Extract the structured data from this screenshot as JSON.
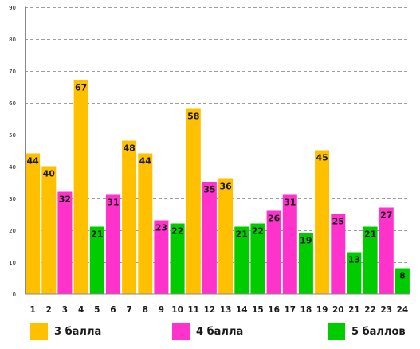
{
  "chart_data": {
    "type": "bar",
    "categories": [
      "1",
      "2",
      "3",
      "4",
      "5",
      "6",
      "7",
      "8",
      "9",
      "10",
      "11",
      "12",
      "13",
      "14",
      "15",
      "16",
      "17",
      "18",
      "19",
      "20",
      "21",
      "22",
      "23",
      "24"
    ],
    "values": [
      44,
      40,
      32,
      67,
      21,
      31,
      48,
      44,
      23,
      22,
      58,
      35,
      36,
      21,
      22,
      26,
      31,
      19,
      45,
      25,
      13,
      21,
      27,
      8
    ],
    "groups": [
      "3 балла",
      "3 балла",
      "4 балла",
      "3 балла",
      "5 баллов",
      "4 балла",
      "3 балла",
      "3 балла",
      "4 балла",
      "5 баллов",
      "3 балла",
      "4 балла",
      "3 балла",
      "5 баллов",
      "5 баллов",
      "4 балла",
      "4 балла",
      "5 баллов",
      "3 балла",
      "4 балла",
      "5 баллов",
      "5 баллов",
      "4 балла",
      "5 баллов"
    ],
    "ylim": [
      0,
      90
    ],
    "yticks": [
      0,
      10,
      20,
      30,
      40,
      50,
      60,
      70,
      80,
      90
    ],
    "grid": true,
    "legend_position": "bottom",
    "legend": [
      {
        "name": "3 балла",
        "color": "#FFC000"
      },
      {
        "name": "4 балла",
        "color": "#FF33CC"
      },
      {
        "name": "5 баллов",
        "color": "#00CC00"
      }
    ]
  }
}
